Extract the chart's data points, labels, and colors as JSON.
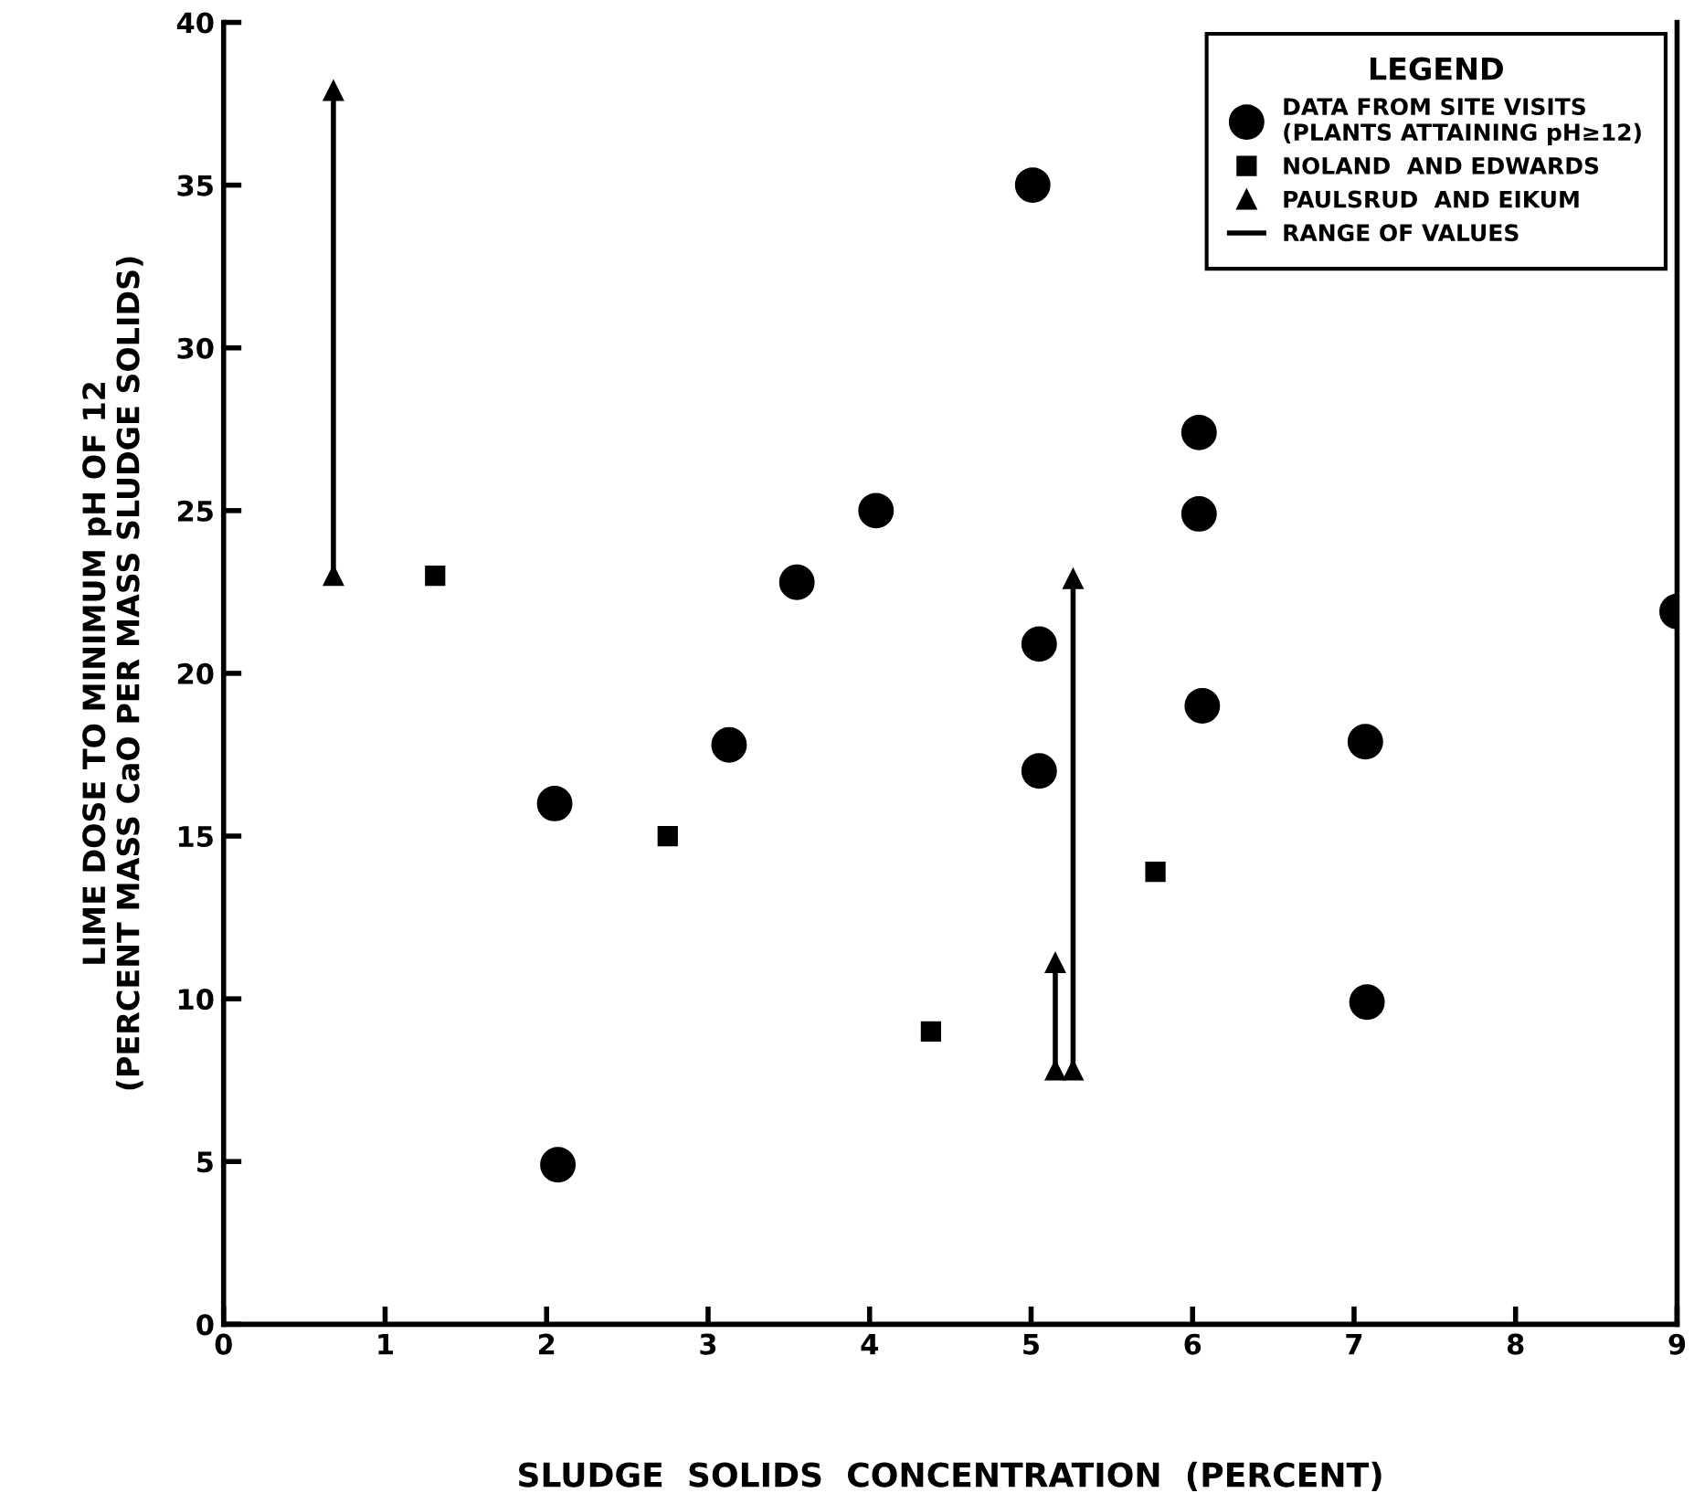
{
  "chart_data": {
    "type": "scatter",
    "xlabel": "SLUDGE  SOLIDS  CONCENTRATION  (PERCENT)",
    "ylabel": "LIME DOSE TO MINIMUM pH OF 12\n(PERCENT MASS CaO PER MASS SLUDGE SOLIDS)",
    "legend_title": "LEGEND",
    "xlim": [
      0,
      9
    ],
    "ylim": [
      0,
      40
    ],
    "xticks": [
      0,
      1,
      2,
      3,
      4,
      5,
      6,
      7,
      8,
      9
    ],
    "yticks": [
      0,
      5,
      10,
      15,
      20,
      25,
      30,
      35,
      40
    ],
    "grid": false,
    "legend": "top right",
    "series": [
      {
        "name": "DATA FROM SITE VISITS\n(PLANTS ATTAINING pH≥12)",
        "marker": "circle",
        "color": "#000000",
        "x": [
          2.05,
          2.07,
          3.13,
          3.55,
          4.04,
          5.01,
          5.05,
          5.05,
          6.04,
          6.04,
          6.06,
          7.07,
          7.08,
          9.0
        ],
        "values": [
          16.0,
          4.9,
          17.8,
          22.8,
          25.0,
          35.0,
          20.9,
          17.0,
          27.4,
          24.9,
          19.0,
          17.9,
          9.9,
          21.9
        ]
      },
      {
        "name": "NOLAND  AND EDWARDS",
        "marker": "square",
        "color": "#000000",
        "x": [
          1.31,
          2.75,
          4.38,
          5.77
        ],
        "values": [
          23.0,
          15.0,
          9.0,
          13.9
        ]
      },
      {
        "name": "PAULSRUD  AND EIKUM",
        "marker": "triangle",
        "color": "#000000",
        "x": [
          0.68,
          0.68,
          5.15,
          5.15,
          5.26,
          5.26
        ],
        "values": [
          23.0,
          37.9,
          7.8,
          11.1,
          7.8,
          22.9
        ]
      },
      {
        "name": "RANGE OF VALUES",
        "type": "line",
        "marker": "none",
        "line_style": "solid",
        "color": "#000000",
        "x": [
          0.68,
          0.68,
          null,
          5.15,
          5.15,
          null,
          5.26,
          5.26
        ],
        "values": [
          23.0,
          37.9,
          null,
          7.8,
          11.1,
          null,
          7.8,
          22.9
        ]
      }
    ]
  }
}
